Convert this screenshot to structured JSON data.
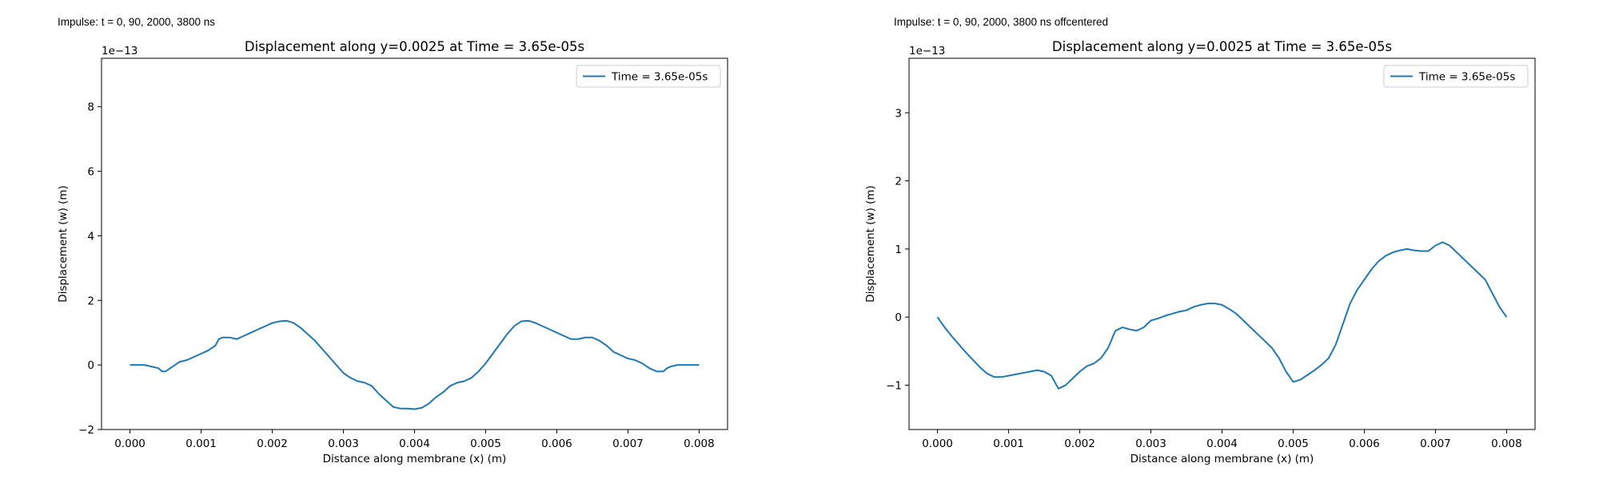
{
  "panels": [
    {
      "impulse_label": "Impulse: t = 0, 90, 2000, 3800 ns"
    },
    {
      "impulse_label": "Impulse: t = 0, 90, 2000, 3800 ns offcentered"
    }
  ],
  "chart_data": [
    {
      "type": "line",
      "title": "Displacement along y=0.0025 at Time = 3.65e-05s",
      "xlabel": "Distance along membrane (x) (m)",
      "ylabel": "Displacement (w) (m)",
      "y_offset_text": "1e−13",
      "xlim": [
        -0.0004,
        0.0084
      ],
      "ylim": [
        -2,
        9.5
      ],
      "xticks": [
        0.0,
        0.001,
        0.002,
        0.003,
        0.004,
        0.005,
        0.006,
        0.007,
        0.008
      ],
      "xtick_labels": [
        "0.000",
        "0.001",
        "0.002",
        "0.003",
        "0.004",
        "0.005",
        "0.006",
        "0.007",
        "0.008"
      ],
      "yticks": [
        -2,
        0,
        2,
        4,
        6,
        8
      ],
      "ytick_labels": [
        "−2",
        "0",
        "2",
        "4",
        "6",
        "8"
      ],
      "grid": false,
      "legend_position": "top-right",
      "line_color": "#1f77b4",
      "series": [
        {
          "name": "Time = 3.65e-05s",
          "x": [
            0.0,
            0.0002,
            0.0003,
            0.0004,
            0.00045,
            0.0005,
            0.0006,
            0.0007,
            0.0008,
            0.0009,
            0.001,
            0.0011,
            0.0012,
            0.00125,
            0.0013,
            0.0014,
            0.0015,
            0.0016,
            0.0017,
            0.0018,
            0.0019,
            0.002,
            0.0021,
            0.0022,
            0.0023,
            0.0024,
            0.0025,
            0.0026,
            0.0027,
            0.0028,
            0.0029,
            0.003,
            0.0031,
            0.0032,
            0.0033,
            0.0034,
            0.0035,
            0.0036,
            0.0037,
            0.0038,
            0.0039,
            0.004,
            0.0041,
            0.0042,
            0.0043,
            0.0044,
            0.0045,
            0.0046,
            0.0047,
            0.0048,
            0.0049,
            0.005,
            0.0051,
            0.0052,
            0.0053,
            0.0054,
            0.0055,
            0.0056,
            0.0057,
            0.0058,
            0.0059,
            0.006,
            0.0061,
            0.0062,
            0.0063,
            0.0064,
            0.0065,
            0.0066,
            0.0067,
            0.00675,
            0.0068,
            0.0069,
            0.007,
            0.0071,
            0.0072,
            0.0073,
            0.0074,
            0.0075,
            0.00755,
            0.0076,
            0.0077,
            0.0078,
            0.0079,
            0.008
          ],
          "values": [
            0.0,
            0.0,
            -0.05,
            -0.1,
            -0.2,
            -0.2,
            -0.05,
            0.1,
            0.15,
            0.25,
            0.35,
            0.45,
            0.6,
            0.8,
            0.85,
            0.85,
            0.8,
            0.9,
            1.0,
            1.1,
            1.2,
            1.3,
            1.35,
            1.37,
            1.3,
            1.15,
            0.95,
            0.75,
            0.5,
            0.25,
            0.0,
            -0.25,
            -0.4,
            -0.5,
            -0.55,
            -0.65,
            -0.9,
            -1.1,
            -1.3,
            -1.35,
            -1.35,
            -1.37,
            -1.33,
            -1.2,
            -1.0,
            -0.85,
            -0.65,
            -0.55,
            -0.5,
            -0.4,
            -0.2,
            0.05,
            0.35,
            0.65,
            0.95,
            1.2,
            1.35,
            1.37,
            1.3,
            1.2,
            1.1,
            1.0,
            0.9,
            0.8,
            0.8,
            0.85,
            0.85,
            0.75,
            0.6,
            0.5,
            0.4,
            0.3,
            0.2,
            0.15,
            0.05,
            -0.1,
            -0.2,
            -0.2,
            -0.1,
            -0.05,
            0.0,
            0.0,
            0.0,
            0.0
          ]
        }
      ]
    },
    {
      "type": "line",
      "title": "Displacement along y=0.0025 at Time = 3.65e-05s",
      "xlabel": "Distance along membrane (x) (m)",
      "ylabel": "Displacement (w) (m)",
      "y_offset_text": "1e−13",
      "xlim": [
        -0.0004,
        0.0084
      ],
      "ylim": [
        -1.65,
        3.8
      ],
      "xticks": [
        0.0,
        0.001,
        0.002,
        0.003,
        0.004,
        0.005,
        0.006,
        0.007,
        0.008
      ],
      "xtick_labels": [
        "0.000",
        "0.001",
        "0.002",
        "0.003",
        "0.004",
        "0.005",
        "0.006",
        "0.007",
        "0.008"
      ],
      "yticks": [
        -1,
        0,
        1,
        2,
        3
      ],
      "ytick_labels": [
        "−1",
        "0",
        "1",
        "2",
        "3"
      ],
      "grid": false,
      "legend_position": "top-right",
      "line_color": "#1f77b4",
      "series": [
        {
          "name": "Time = 3.65e-05s",
          "x": [
            0.0,
            0.0001,
            0.0002,
            0.0003,
            0.0004,
            0.0005,
            0.0006,
            0.0007,
            0.0008,
            0.0009,
            0.001,
            0.0011,
            0.0012,
            0.0013,
            0.0014,
            0.0015,
            0.0016,
            0.0017,
            0.0018,
            0.0019,
            0.002,
            0.0021,
            0.0022,
            0.0023,
            0.0024,
            0.0025,
            0.0026,
            0.0027,
            0.0028,
            0.0029,
            0.003,
            0.0031,
            0.0032,
            0.0033,
            0.0034,
            0.0035,
            0.0036,
            0.0037,
            0.0038,
            0.0039,
            0.004,
            0.0041,
            0.0042,
            0.0043,
            0.0044,
            0.0045,
            0.0046,
            0.0047,
            0.0048,
            0.0049,
            0.005,
            0.0051,
            0.0052,
            0.0053,
            0.0054,
            0.0055,
            0.0056,
            0.0057,
            0.0058,
            0.0059,
            0.006,
            0.0061,
            0.0062,
            0.0063,
            0.0064,
            0.0065,
            0.0066,
            0.0067,
            0.0068,
            0.0069,
            0.007,
            0.0071,
            0.0072,
            0.0073,
            0.0074,
            0.0075,
            0.0076,
            0.0077,
            0.0078,
            0.0079,
            0.008
          ],
          "values": [
            0.0,
            -0.15,
            -0.28,
            -0.4,
            -0.52,
            -0.63,
            -0.74,
            -0.83,
            -0.88,
            -0.88,
            -0.86,
            -0.84,
            -0.82,
            -0.8,
            -0.78,
            -0.8,
            -0.86,
            -1.05,
            -1.0,
            -0.9,
            -0.8,
            -0.72,
            -0.68,
            -0.6,
            -0.45,
            -0.2,
            -0.15,
            -0.18,
            -0.2,
            -0.15,
            -0.05,
            -0.02,
            0.02,
            0.05,
            0.08,
            0.1,
            0.15,
            0.18,
            0.2,
            0.2,
            0.18,
            0.12,
            0.05,
            -0.05,
            -0.15,
            -0.25,
            -0.35,
            -0.45,
            -0.6,
            -0.8,
            -0.95,
            -0.92,
            -0.85,
            -0.78,
            -0.7,
            -0.6,
            -0.4,
            -0.1,
            0.2,
            0.4,
            0.55,
            0.7,
            0.82,
            0.9,
            0.95,
            0.98,
            1.0,
            0.98,
            0.97,
            0.97,
            1.05,
            1.1,
            1.05,
            0.95,
            0.85,
            0.75,
            0.65,
            0.55,
            0.35,
            0.15,
            0.0
          ]
        }
      ]
    }
  ]
}
